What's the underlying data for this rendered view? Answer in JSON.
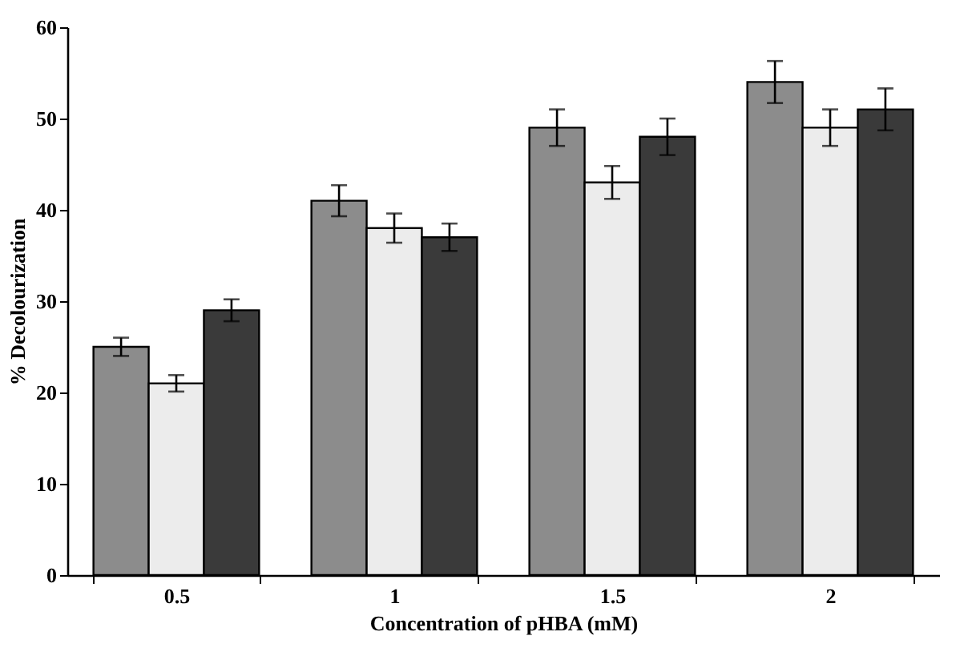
{
  "chart_data": {
    "type": "bar",
    "xlabel": "Concentration of pHBA (mM)",
    "ylabel": "% Decolourization",
    "categories": [
      "0.5",
      "1",
      "1.5",
      "2"
    ],
    "series": [
      {
        "color": "#8c8c8c",
        "values": [
          25,
          41,
          49,
          54
        ],
        "errors": [
          1,
          1.7,
          2,
          2.3
        ]
      },
      {
        "color": "#ececec",
        "values": [
          21,
          38,
          43,
          49
        ],
        "errors": [
          0.9,
          1.6,
          1.8,
          2
        ]
      },
      {
        "color": "#3a3a3a",
        "values": [
          29,
          37,
          48,
          51
        ],
        "errors": [
          1.2,
          1.5,
          2,
          2.3
        ]
      }
    ],
    "ylim": [
      0,
      60
    ],
    "yticks": [
      0,
      10,
      20,
      30,
      40,
      50,
      60
    ],
    "grid": false
  }
}
